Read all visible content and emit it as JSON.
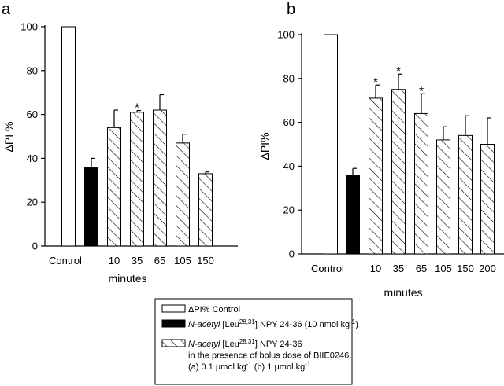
{
  "chart_data": [
    {
      "panel_label": "a",
      "type": "bar",
      "categories": [
        "Control",
        "",
        "10",
        "35",
        "65",
        "105",
        "150"
      ],
      "xlabel": "minutes",
      "ylabel": "ΔPI %",
      "ylim": [
        0,
        100
      ],
      "yticks": [
        0,
        20,
        40,
        60,
        80,
        100
      ],
      "bars": [
        {
          "label": "Control",
          "value": 100,
          "error": 0,
          "style": "open",
          "star": false
        },
        {
          "label": "",
          "value": 36,
          "error": 4,
          "style": "filled",
          "star": false
        },
        {
          "label": "10",
          "value": 54,
          "error": 8,
          "style": "hatched",
          "star": false
        },
        {
          "label": "35",
          "value": 61,
          "error": 0.8,
          "style": "hatched",
          "star": true
        },
        {
          "label": "65",
          "value": 62,
          "error": 7,
          "style": "hatched",
          "star": false
        },
        {
          "label": "105",
          "value": 47,
          "error": 4,
          "style": "hatched",
          "star": false
        },
        {
          "label": "150",
          "value": 33,
          "error": 0.8,
          "style": "hatched",
          "star": false
        }
      ]
    },
    {
      "panel_label": "b",
      "type": "bar",
      "categories": [
        "Control",
        "",
        "10",
        "35",
        "65",
        "105",
        "150",
        "200"
      ],
      "xlabel": "minutes",
      "ylabel": "ΔPI%",
      "ylim": [
        0,
        100
      ],
      "yticks": [
        0,
        20,
        40,
        60,
        80,
        100
      ],
      "bars": [
        {
          "label": "Control",
          "value": 100,
          "error": 0,
          "style": "open",
          "star": false
        },
        {
          "label": "",
          "value": 36,
          "error": 3,
          "style": "filled",
          "star": false
        },
        {
          "label": "10",
          "value": 71,
          "error": 6,
          "style": "hatched",
          "star": true
        },
        {
          "label": "35",
          "value": 75,
          "error": 7,
          "style": "hatched",
          "star": true
        },
        {
          "label": "65",
          "value": 64,
          "error": 9,
          "style": "hatched",
          "star": true
        },
        {
          "label": "105",
          "value": 52,
          "error": 6,
          "style": "hatched",
          "star": false
        },
        {
          "label": "150",
          "value": 54,
          "error": 9,
          "style": "hatched",
          "star": false
        },
        {
          "label": "200",
          "value": 50,
          "error": 12,
          "style": "hatched",
          "star": false
        }
      ]
    }
  ],
  "star_symbol": "*",
  "legend": {
    "placement": "bottom-center",
    "items": [
      {
        "style": "open",
        "lines": [
          [
            {
              "t": "ΔPI% Control",
              "i": false,
              "sup": false
            }
          ]
        ]
      },
      {
        "style": "filled",
        "lines": [
          [
            {
              "t": "N-acetyl",
              "i": true,
              "sup": false
            },
            {
              "t": " [Leu",
              "i": false,
              "sup": false
            },
            {
              "t": "28,31",
              "i": false,
              "sup": true
            },
            {
              "t": "] NPY 24-36 (10 nmol kg",
              "i": false,
              "sup": false
            },
            {
              "t": "-1",
              "i": false,
              "sup": true
            },
            {
              "t": ")",
              "i": false,
              "sup": false
            }
          ]
        ]
      },
      {
        "style": "hatched",
        "lines": [
          [
            {
              "t": "N-acetyl",
              "i": true,
              "sup": false
            },
            {
              "t": " [Leu",
              "i": false,
              "sup": false
            },
            {
              "t": "28,31",
              "i": false,
              "sup": true
            },
            {
              "t": "] NPY 24-36",
              "i": false,
              "sup": false
            }
          ],
          [
            {
              "t": "in the presence of bolus dose of BIIE0246.",
              "i": false,
              "sup": false
            }
          ],
          [
            {
              "t": "(a) 0.1 μmol kg",
              "i": false,
              "sup": false
            },
            {
              "t": "-1",
              "i": false,
              "sup": true
            },
            {
              "t": " (b) 1 μmol kg",
              "i": false,
              "sup": false
            },
            {
              "t": "-1",
              "i": false,
              "sup": true
            }
          ]
        ]
      }
    ]
  },
  "colors": {
    "filled": "#000000",
    "open": "#ffffff",
    "hatch": "#000000",
    "axis": "#000000"
  }
}
